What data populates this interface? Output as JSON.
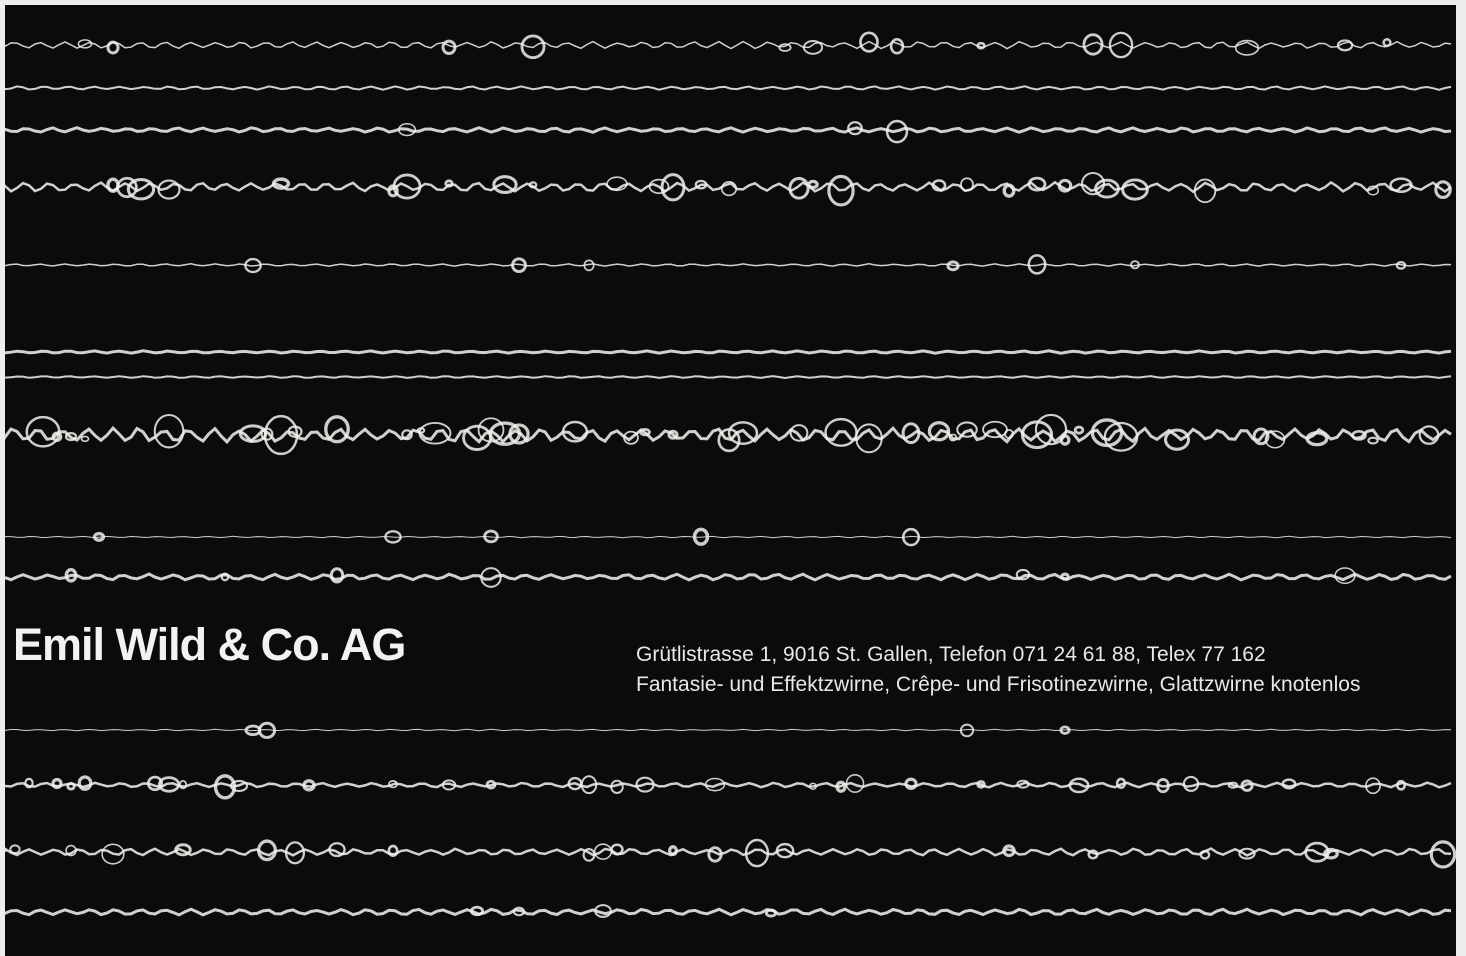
{
  "advertisement": {
    "company": "Emil Wild & Co. AG",
    "address": "Grütlistrasse 1, 9016 St. Gallen, Telefon 071 24 61 88, Telex 77 162",
    "products": "Fantasie- und Effektzwirne, Crêpe- und Frisotinezwirne, Glattzwirne knotenlos"
  }
}
